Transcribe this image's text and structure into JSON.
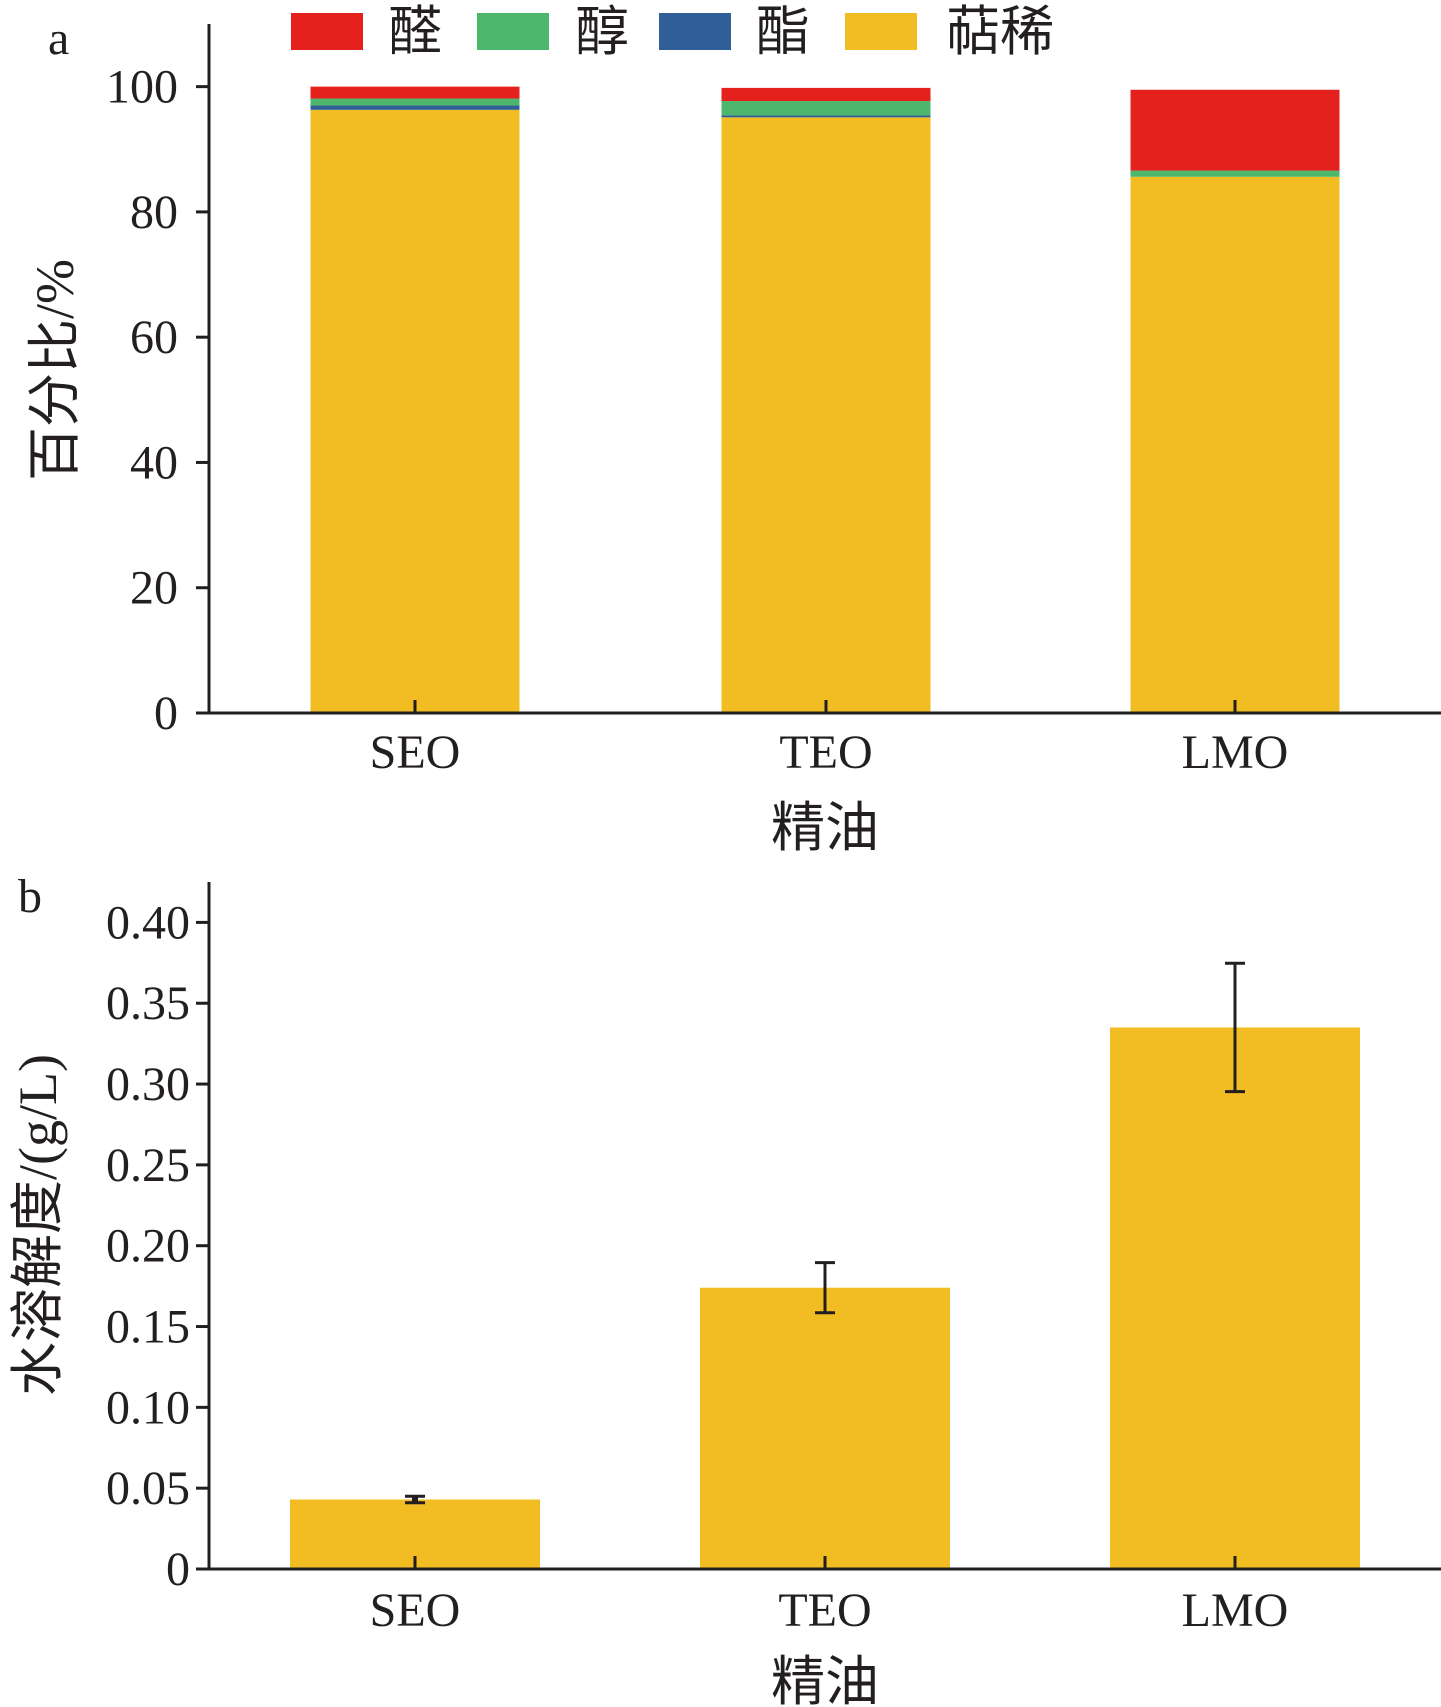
{
  "panels": [
    {
      "label": "a"
    },
    {
      "label": "b"
    }
  ],
  "chart_data": [
    {
      "type": "bar",
      "stacked": true,
      "categories": [
        "SEO",
        "TEO",
        "LMO"
      ],
      "series": [
        {
          "name": "萜稀",
          "color": "#f2bd23",
          "values": [
            96.3,
            95.1,
            85.6
          ]
        },
        {
          "name": "酯",
          "color": "#2f5f96",
          "values": [
            0.7,
            0.3,
            0.0
          ]
        },
        {
          "name": "醇",
          "color": "#4db86d",
          "values": [
            1.1,
            2.3,
            1.0
          ]
        },
        {
          "name": "醛",
          "color": "#e4211c",
          "values": [
            1.9,
            2.1,
            12.9
          ]
        }
      ],
      "legend_order": [
        "醛",
        "醇",
        "酯",
        "萜稀"
      ],
      "legend_placement": "top",
      "xlabel": "精油",
      "ylabel": "百分比/%",
      "ylim": [
        0,
        110
      ],
      "yticks": [
        0,
        20,
        40,
        60,
        80,
        100
      ],
      "grid": false
    },
    {
      "type": "bar",
      "categories": [
        "SEO",
        "TEO",
        "LMO"
      ],
      "values": [
        0.043,
        0.174,
        0.335
      ],
      "errors": [
        0.002,
        0.0155,
        0.0397
      ],
      "color": "#f2bd23",
      "xlabel": "精油",
      "ylabel": "水溶解度/(g/L)",
      "ylim": [
        0,
        0.425
      ],
      "yticks": [
        "0",
        "0.05",
        "0.10",
        "0.15",
        "0.20",
        "0.25",
        "0.30",
        "0.35",
        "0.40"
      ],
      "grid": false
    }
  ]
}
